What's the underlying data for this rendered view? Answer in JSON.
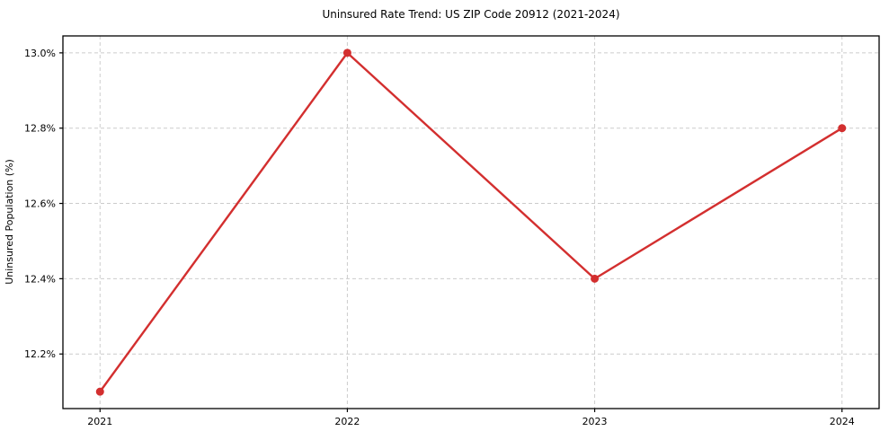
{
  "chart_data": {
    "type": "line",
    "title": "Uninsured Rate Trend: US ZIP Code 20912 (2021-2024)",
    "xlabel": "",
    "ylabel": "Uninsured Population (%)",
    "x": [
      2021,
      2022,
      2023,
      2024
    ],
    "series": [
      {
        "name": "Uninsured Population (%)",
        "values": [
          12.1,
          13.0,
          12.4,
          12.8
        ]
      }
    ],
    "xticks": [
      2021,
      2022,
      2023,
      2024
    ],
    "xtick_labels": [
      "2021",
      "2022",
      "2023",
      "2024"
    ],
    "yticks": [
      12.2,
      12.4,
      12.6,
      12.8,
      13.0
    ],
    "ytick_labels": [
      "12.2%",
      "12.4%",
      "12.6%",
      "12.8%",
      "13.0%"
    ],
    "xlim": [
      2020.85,
      2024.15
    ],
    "ylim": [
      12.055,
      13.045
    ],
    "grid": true,
    "grid_style": "dashed",
    "legend": "none",
    "colors": {
      "line": "#d32f2f",
      "marker": "#d32f2f",
      "grid": "#cccccc",
      "axis": "#000000",
      "text": "#000000",
      "background": "#ffffff"
    }
  }
}
